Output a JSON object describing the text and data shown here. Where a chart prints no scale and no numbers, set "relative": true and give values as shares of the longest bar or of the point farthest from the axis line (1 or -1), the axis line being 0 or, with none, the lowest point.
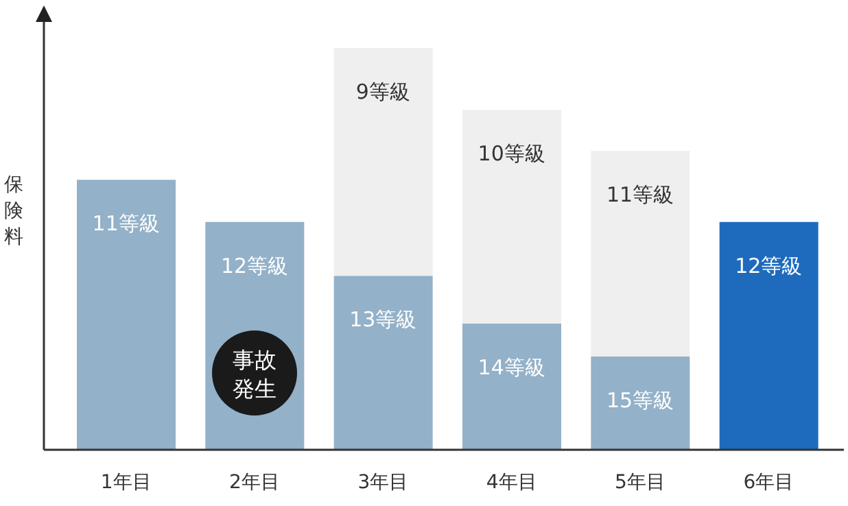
{
  "chart_data": {
    "type": "bar",
    "relative": true,
    "stacked": true,
    "ylabel": "保険料",
    "legend": false,
    "grid": false,
    "categories": [
      "1年目",
      "2年目",
      "3年目",
      "4年目",
      "5年目",
      "6年目"
    ],
    "series": [
      {
        "colors": [
          "#93b1c8",
          "#93b1c8",
          "#93b1c8",
          "#93b1c8",
          "#93b1c8",
          "#1e6bbd"
        ],
        "values": [
          0.672,
          0.567,
          0.433,
          0.314,
          0.232,
          0.567
        ]
      },
      {
        "color": "#efefef",
        "values": [
          null,
          null,
          0.567,
          0.532,
          0.512,
          null
        ]
      }
    ],
    "annotations": [
      {
        "text": "11等級",
        "x": "1年目",
        "y": 0.672
      },
      {
        "text": "12等級",
        "x": "2年目",
        "y": 0.567
      },
      {
        "text": "13等級",
        "x": "3年目",
        "y": 0.433
      },
      {
        "text": "14等級",
        "x": "4年目",
        "y": 0.314
      },
      {
        "text": "15等級",
        "x": "5年目",
        "y": 0.232
      },
      {
        "text": "12等級",
        "x": "6年目",
        "y": 0.567
      },
      {
        "text": "9等級",
        "x": "3年目",
        "y": 1.0
      },
      {
        "text": "10等級",
        "x": "4年目",
        "y": 0.846
      },
      {
        "text": "11等級",
        "x": "5年目",
        "y": 0.744
      },
      "事故発生"
    ]
  }
}
